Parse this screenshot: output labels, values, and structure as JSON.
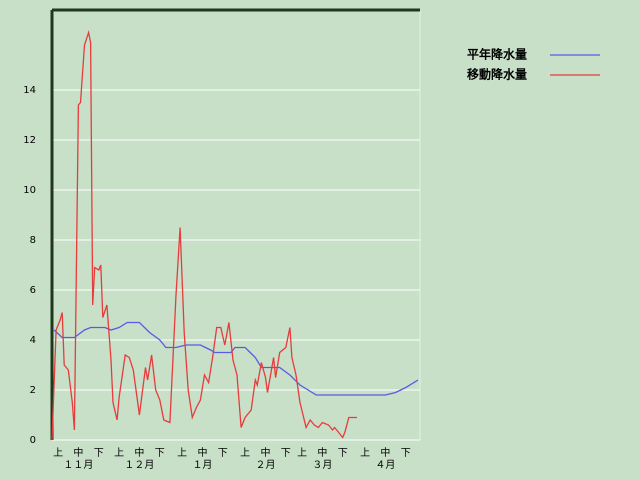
{
  "chart_data": {
    "type": "line",
    "xlim": [
      0,
      181
    ],
    "ylim": [
      0,
      17.2
    ],
    "yticks": [
      0,
      2,
      4,
      6,
      8,
      10,
      12,
      14
    ],
    "xticks": [
      {
        "value": 3,
        "label": "上"
      },
      {
        "value": 13,
        "label": "中"
      },
      {
        "value": 23,
        "label": "下"
      },
      {
        "value": 33,
        "label": "上"
      },
      {
        "value": 43,
        "label": "中"
      },
      {
        "value": 53,
        "label": "下"
      },
      {
        "value": 64,
        "label": "上"
      },
      {
        "value": 74,
        "label": "中"
      },
      {
        "value": 84,
        "label": "下"
      },
      {
        "value": 95,
        "label": "上"
      },
      {
        "value": 105,
        "label": "中"
      },
      {
        "value": 115,
        "label": "下"
      },
      {
        "value": 123,
        "label": "上"
      },
      {
        "value": 133,
        "label": "中"
      },
      {
        "value": 143,
        "label": "下"
      },
      {
        "value": 154,
        "label": "上"
      },
      {
        "value": 164,
        "label": "中"
      },
      {
        "value": 174,
        "label": "下"
      }
    ],
    "month_labels": [
      {
        "value": 13,
        "label": "１１月"
      },
      {
        "value": 43,
        "label": "１２月"
      },
      {
        "value": 74,
        "label": "１月"
      },
      {
        "value": 105,
        "label": "２月"
      },
      {
        "value": 133,
        "label": "３月"
      },
      {
        "value": 164,
        "label": "４月"
      }
    ],
    "grid": true,
    "legend": "top-right",
    "series": [
      {
        "name": "平年降水量",
        "color": "#5a5ae6",
        "x": [
          1,
          5,
          11,
          16,
          19,
          26,
          29,
          33,
          37,
          43,
          48,
          53,
          56,
          61,
          66,
          73,
          78,
          80,
          88,
          90,
          95,
          100,
          103,
          112,
          117,
          122,
          130,
          164,
          169,
          174,
          180
        ],
        "values": [
          4.4,
          4.1,
          4.1,
          4.4,
          4.5,
          4.5,
          4.4,
          4.5,
          4.7,
          4.7,
          4.3,
          4.0,
          3.7,
          3.7,
          3.8,
          3.8,
          3.6,
          3.5,
          3.5,
          3.7,
          3.7,
          3.3,
          2.9,
          2.9,
          2.6,
          2.2,
          1.8,
          1.8,
          1.9,
          2.1,
          2.4
        ]
      },
      {
        "name": "移動降水量",
        "color": "#e63c3c",
        "x": [
          0,
          2,
          4,
          5,
          6,
          8,
          10,
          11,
          13,
          14,
          16,
          18,
          19,
          20,
          21,
          23,
          24,
          25,
          27,
          29,
          30,
          32,
          33,
          36,
          38,
          40,
          43,
          46,
          47,
          49,
          51,
          53,
          55,
          58,
          61,
          63,
          65,
          67,
          69,
          71,
          73,
          75,
          77,
          79,
          81,
          83,
          85,
          87,
          89,
          91,
          93,
          95,
          98,
          100,
          101,
          103,
          105,
          106,
          109,
          110,
          112,
          115,
          117,
          118,
          120,
          122,
          125,
          127,
          129,
          131,
          133,
          136,
          138,
          139,
          141,
          143,
          144,
          146,
          150
        ],
        "values": [
          0,
          4.4,
          4.8,
          5.1,
          3.0,
          2.8,
          1.5,
          0.4,
          13.4,
          13.5,
          15.8,
          16.3,
          15.9,
          5.4,
          6.9,
          6.8,
          7.0,
          4.9,
          5.4,
          3.2,
          1.5,
          0.8,
          1.7,
          3.4,
          3.3,
          2.8,
          1.0,
          2.9,
          2.4,
          3.4,
          2.0,
          1.6,
          0.8,
          0.7,
          5.8,
          8.5,
          4.3,
          2.0,
          0.9,
          1.3,
          1.6,
          2.6,
          2.3,
          3.3,
          4.5,
          4.5,
          3.8,
          4.7,
          3.2,
          2.6,
          0.5,
          0.9,
          1.2,
          2.4,
          2.2,
          3.1,
          2.5,
          1.9,
          3.3,
          2.5,
          3.5,
          3.7,
          4.5,
          3.3,
          2.6,
          1.5,
          0.5,
          0.8,
          0.6,
          0.5,
          0.7,
          0.6,
          0.4,
          0.5,
          0.3,
          0.1,
          0.3,
          0.9,
          0.9
        ]
      }
    ]
  }
}
